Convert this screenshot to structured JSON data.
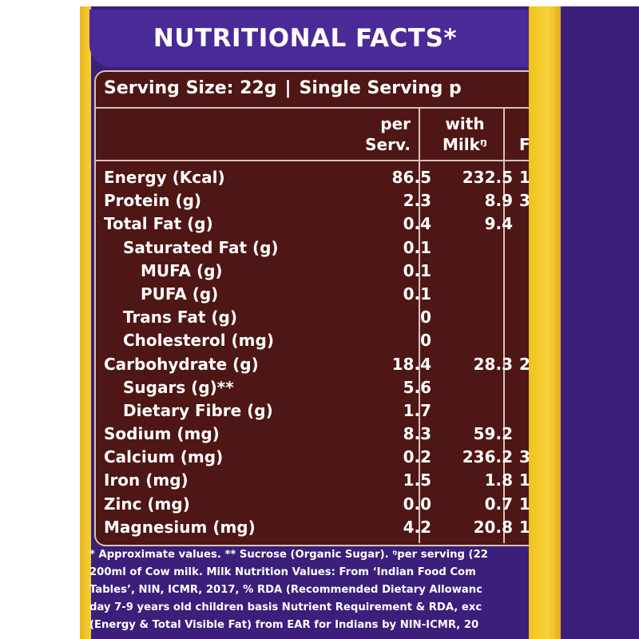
{
  "title": "NUTRITIONAL FACTS*",
  "serving": {
    "size": "Serving Size: 22g",
    "separator": "|",
    "single": "Single Serving p"
  },
  "columns": {
    "per_line1": "per",
    "per_line2": "Serv.",
    "milk_line1": "with",
    "milk_line2": "Milkᵑ",
    "third_partial": "F"
  },
  "rows": [
    {
      "name": "Energy (Kcal)",
      "per": "86.5",
      "milk": "232.5",
      "third": "1",
      "indent": 0
    },
    {
      "name": "Protein (g)",
      "per": "2.3",
      "milk": "8.9",
      "third": "3",
      "indent": 0
    },
    {
      "name": "Total Fat (g)",
      "per": "0.4",
      "milk": "9.4",
      "third": "",
      "indent": 0
    },
    {
      "name": "Saturated Fat (g)",
      "per": "0.1",
      "milk": "",
      "third": "",
      "indent": 1
    },
    {
      "name": "MUFA (g)",
      "per": "0.1",
      "milk": "",
      "third": "",
      "indent": 2
    },
    {
      "name": "PUFA (g)",
      "per": "0.1",
      "milk": "",
      "third": "",
      "indent": 2
    },
    {
      "name": "Trans Fat (g)",
      "per": "0",
      "milk": "",
      "third": "",
      "indent": 1
    },
    {
      "name": "Cholesterol (mg)",
      "per": "0",
      "milk": "",
      "third": "",
      "indent": 1
    },
    {
      "name": "Carbohydrate (g)",
      "per": "18.4",
      "milk": "28.3",
      "third": "2",
      "indent": 0
    },
    {
      "name": "Sugars (g)**",
      "per": "5.6",
      "milk": "",
      "third": "",
      "indent": 1
    },
    {
      "name": "Dietary Fibre (g)",
      "per": "1.7",
      "milk": "",
      "third": "",
      "indent": 1
    },
    {
      "name": "Sodium (mg)",
      "per": "8.3",
      "milk": "59.2",
      "third": "",
      "indent": 0
    },
    {
      "name": "Calcium (mg)",
      "per": "0.2",
      "milk": "236.2",
      "third": "3",
      "indent": 0
    },
    {
      "name": "Iron (mg)",
      "per": "1.5",
      "milk": "1.8",
      "third": "1",
      "indent": 0
    },
    {
      "name": "Zinc (mg)",
      "per": "0.0",
      "milk": "0.7",
      "third": "1",
      "indent": 0
    },
    {
      "name": "Magnesium (mg)",
      "per": "4.2",
      "milk": "20.8",
      "third": "1",
      "indent": 0
    }
  ],
  "footer": [
    "* Approximate values. ** Sucrose (Organic Sugar). ᵑper serving (22",
    "200ml of Cow milk. Milk Nutrition Values: From ‘Indian Food Com",
    "Tables’, NIN, ICMR, 2017, % RDA (Recommended Dietary Allowanc",
    "day 7-9 years old children basis Nutrient Requirement & RDA, exc",
    "(Energy & Total Visible Fat) from EAR for Indians by NIN-ICMR, 20"
  ]
}
